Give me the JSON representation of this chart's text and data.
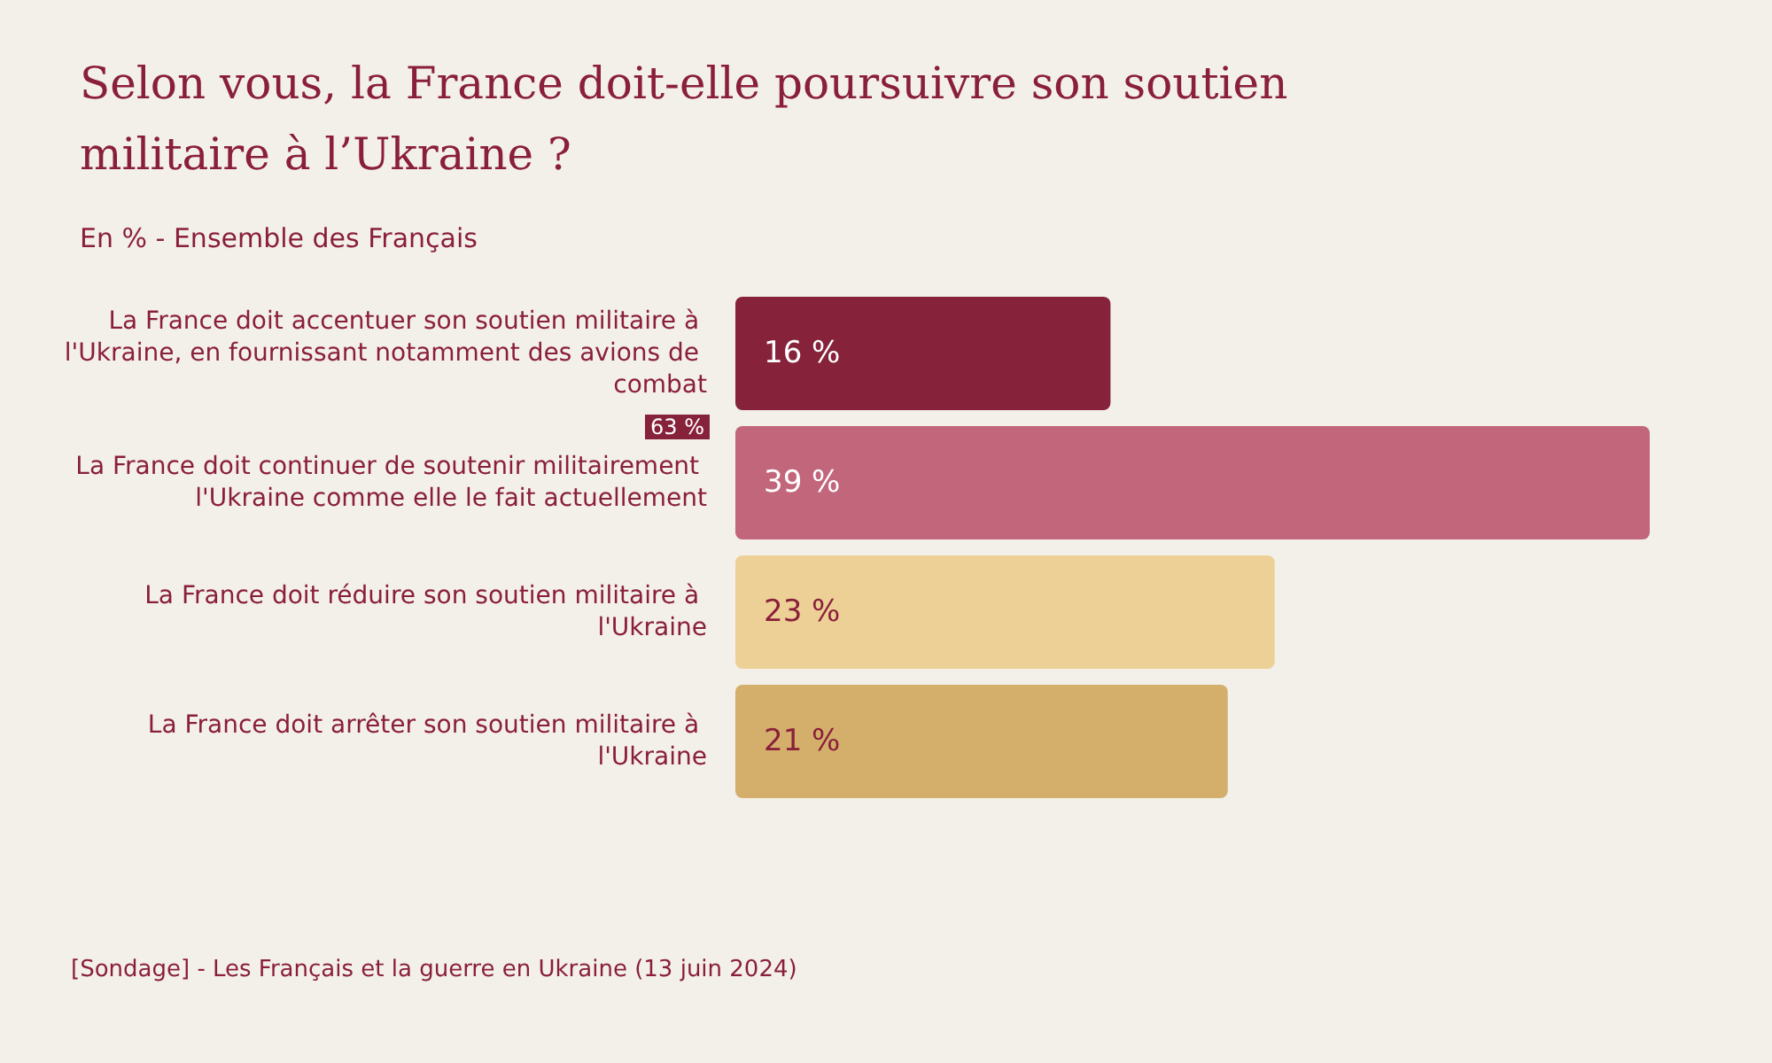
{
  "chart_data": {
    "type": "bar",
    "orientation": "horizontal",
    "title": "Selon vous, la France doit-elle poursuivre son soutien militaire à l’Ukraine ?",
    "subtitle": "En % - Ensemble des Français",
    "categories": [
      "La France doit accentuer son soutien militaire à l'Ukraine, en fournissant notamment des avions de combat",
      "La France doit continuer de soutenir militairement l'Ukraine comme elle le fait actuellement",
      "La France doit réduire son soutien militaire à l'Ukraine",
      "La France doit arrêter son soutien militaire à l'Ukraine"
    ],
    "values": [
      16,
      39,
      23,
      21
    ],
    "value_labels": [
      "16 %",
      "39 %",
      "23 %",
      "21 %"
    ],
    "colors": [
      "#862239",
      "#c2667b",
      "#ecd096",
      "#d3af6b"
    ],
    "annotations": [
      "63 %",
      "[Sondage] - Les Français et la guerre en Ukraine (13 juin 2024)"
    ],
    "grid": false
  }
}
